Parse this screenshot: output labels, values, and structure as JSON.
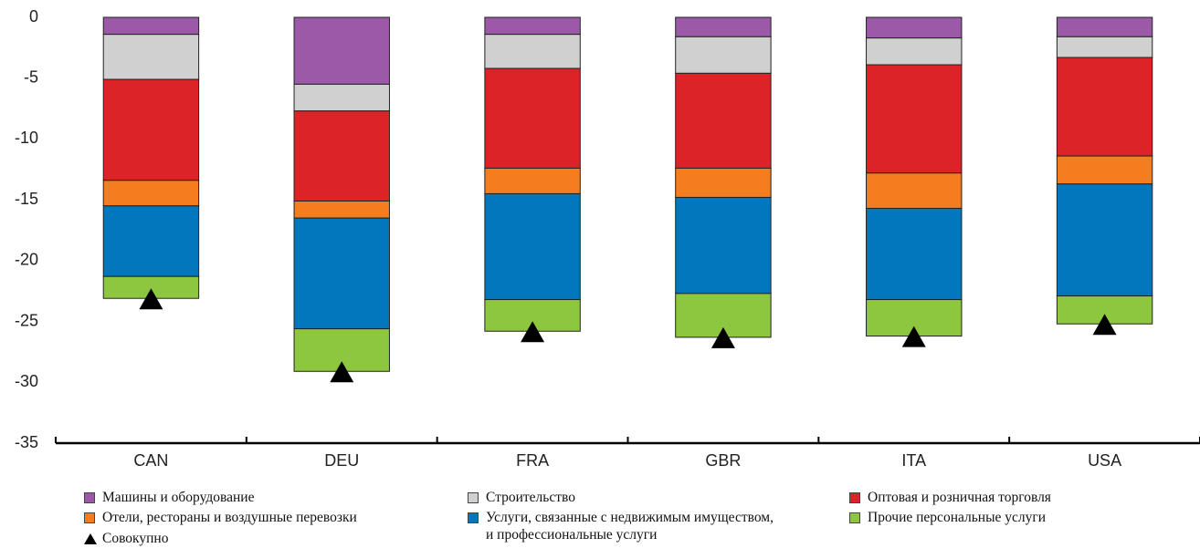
{
  "chart_data": {
    "type": "bar",
    "stacked": true,
    "categories": [
      "CAN",
      "DEU",
      "FRA",
      "GBR",
      "ITA",
      "USA"
    ],
    "series": [
      {
        "name": "Машины и оборудование",
        "color": "#9b59a8",
        "values": [
          -1.4,
          -5.5,
          -1.4,
          -1.6,
          -1.7,
          -1.6
        ]
      },
      {
        "name": "Строительство",
        "color": "#d0d0d0",
        "values": [
          -3.7,
          -2.2,
          -2.8,
          -3.0,
          -2.2,
          -1.7
        ]
      },
      {
        "name": "Оптовая и розничная торговля",
        "color": "#dc2328",
        "values": [
          -8.3,
          -7.4,
          -8.2,
          -7.8,
          -8.9,
          -8.1
        ]
      },
      {
        "name": "Отели, рестораны и воздушные перевозки",
        "color": "#f47d20",
        "values": [
          -2.1,
          -1.4,
          -2.1,
          -2.4,
          -2.9,
          -2.3
        ]
      },
      {
        "name": "Услуги, связанные с недвижимым имуществом,\nи профессиональные услуги",
        "color": "#0277bd",
        "values": [
          -5.8,
          -9.1,
          -8.7,
          -7.9,
          -7.5,
          -9.2
        ]
      },
      {
        "name": "Прочие персональные услуги",
        "color": "#8dc63f",
        "values": [
          -1.8,
          -3.5,
          -2.6,
          -3.6,
          -3.0,
          -2.3
        ]
      }
    ],
    "total": {
      "name": "Совокупно",
      "type": "scatter",
      "marker": "triangle",
      "color": "#000000",
      "values": [
        -23.1,
        -29.1,
        -25.8,
        -26.3,
        -26.2,
        -25.2
      ]
    },
    "ylim": [
      -35,
      0
    ],
    "yticks": [
      0,
      -5,
      -10,
      -15,
      -20,
      -25,
      -30,
      -35
    ],
    "grid": false
  }
}
